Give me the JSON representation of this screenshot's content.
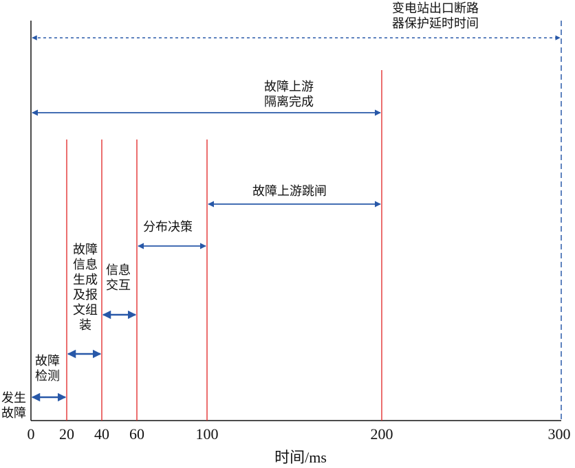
{
  "diagram": {
    "x_axis": {
      "ticks": [
        "0",
        "20",
        "40",
        "60",
        "100",
        "200",
        "300"
      ],
      "label": "时间/ms"
    },
    "phases": [
      {
        "id": "fault-occur",
        "lines": [
          "发生",
          "故障"
        ],
        "start": 0,
        "end": 20
      },
      {
        "id": "fault-detect",
        "lines": [
          "故障",
          "检测"
        ],
        "start": 20,
        "end": 40
      },
      {
        "id": "msg-generate",
        "lines": [
          "故障",
          "信息",
          "生成",
          "及报",
          "文组",
          "装"
        ],
        "start": 20,
        "end": 40
      },
      {
        "id": "info-exchange",
        "lines": [
          "信息",
          "交互"
        ],
        "start": 40,
        "end": 60
      },
      {
        "id": "distributed-decision",
        "lines": [
          "分布决策"
        ],
        "start": 60,
        "end": 100
      },
      {
        "id": "upstream-trip",
        "lines": [
          "故障上游跳闸"
        ],
        "start": 100,
        "end": 200
      },
      {
        "id": "upstream-isolation",
        "lines": [
          "故障上游",
          "隔离完成"
        ],
        "start": 0,
        "end": 200
      },
      {
        "id": "substation-delay",
        "lines": [
          "变电站出口断路",
          "器保护延时时间"
        ],
        "start": 0,
        "end": 300
      }
    ],
    "colors": {
      "arrow": "#2858a8",
      "marker_line": "#e02020",
      "axis": "#111111",
      "dashed_line": "#2858a8"
    }
  }
}
